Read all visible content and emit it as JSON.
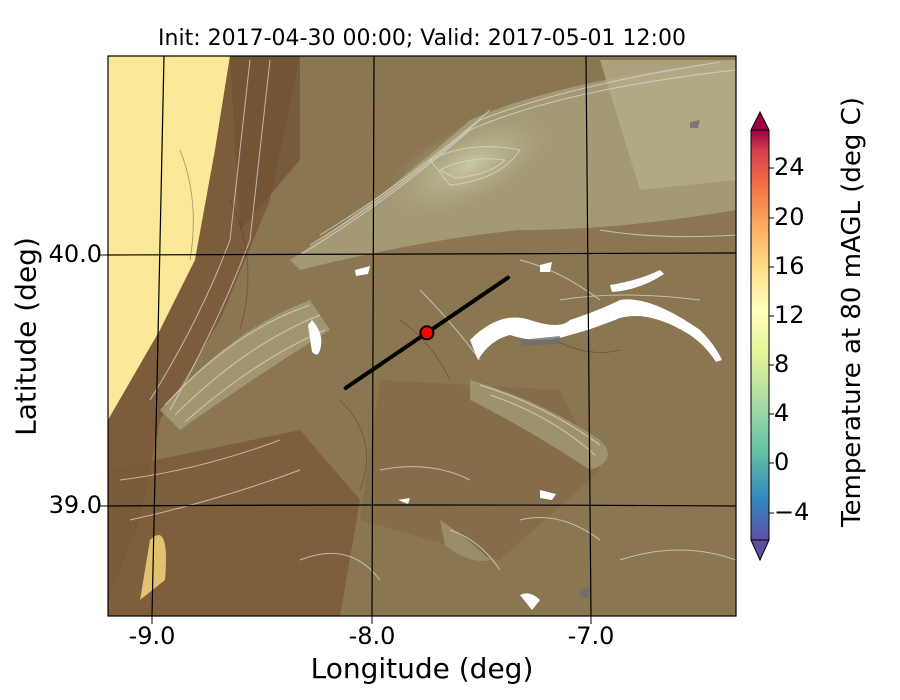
{
  "title": "Init: 2017-04-30 00:00; Valid: 2017-05-01 12:00",
  "xaxis": {
    "label": "Longitude (deg)",
    "ticks": [
      "-9.0",
      "-8.0",
      "-7.0"
    ]
  },
  "yaxis": {
    "label": "Latitude (deg)",
    "ticks": [
      "40.0",
      "39.0"
    ]
  },
  "colorbar": {
    "label": "Temperature at 80 mAGL (deg C)",
    "ticks": [
      "24",
      "20",
      "16",
      "12",
      "8",
      "4",
      "0",
      "−4"
    ],
    "colormap": "Spectral_r"
  },
  "colors": {
    "ocean": "#fbe899",
    "terrain_low": "#7a5a38",
    "terrain_mid": "#8f7a52",
    "terrain_high": "#b8b48e",
    "contour": "#d9d9d0",
    "lake": "#ffffff",
    "transect": "#000000",
    "marker": "#ff0000"
  },
  "marker": {
    "name": "station-marker",
    "lon": -7.75,
    "lat": 39.69
  },
  "transect": {
    "start": {
      "lon": -8.12,
      "lat": 39.47
    },
    "end": {
      "lon": -7.38,
      "lat": 39.91
    }
  }
}
